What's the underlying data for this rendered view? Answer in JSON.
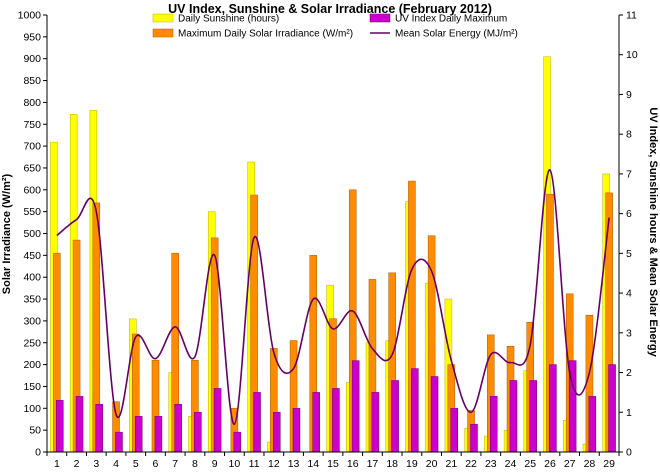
{
  "chart_data": {
    "type": "bar",
    "title": "UV Index, Sunshine & Solar Irradiance (February 2012)",
    "ylabel_left": "Solar Irradiance (W/m²)",
    "ylabel_right": "UV Index, Sunshine hours & Mean Solar Energy",
    "categories": [
      "1",
      "2",
      "3",
      "4",
      "5",
      "6",
      "7",
      "8",
      "9",
      "10",
      "11",
      "12",
      "13",
      "14",
      "15",
      "16",
      "17",
      "18",
      "19",
      "20",
      "21",
      "22",
      "23",
      "24",
      "25",
      "26",
      "27",
      "28",
      "29"
    ],
    "ylim_left": [
      0,
      1000
    ],
    "yticks_left": [
      "0",
      "50",
      "100",
      "150",
      "200",
      "250",
      "300",
      "350",
      "400",
      "450",
      "500",
      "550",
      "600",
      "650",
      "700",
      "750",
      "800",
      "850",
      "900",
      "950",
      "1000"
    ],
    "ylim_right": [
      0,
      11
    ],
    "yticks_right": [
      "0",
      "1",
      "2",
      "3",
      "4",
      "5",
      "6",
      "7",
      "8",
      "9",
      "10",
      "11"
    ],
    "grid": false,
    "legend_position": "top",
    "series": [
      {
        "name": "Daily Sunshine (hours)",
        "kind": "bar",
        "axis": "right",
        "color": "#ffff00",
        "stroke": "#bdb000",
        "values": [
          7.8,
          8.5,
          8.6,
          0.0,
          3.35,
          0.0,
          2.0,
          0.9,
          6.05,
          0.0,
          7.3,
          0.25,
          0.0,
          0.0,
          4.2,
          1.75,
          2.75,
          2.8,
          6.3,
          4.25,
          3.85,
          0.6,
          0.4,
          0.55,
          2.05,
          9.95,
          0.8,
          0.2,
          7.0
        ]
      },
      {
        "name": "Maximum Daily Solar Irradiance (W/m²)",
        "kind": "bar",
        "axis": "left",
        "color": "#ff8c00",
        "stroke": "#a85a00",
        "values": [
          455,
          485,
          570,
          115,
          270,
          210,
          455,
          210,
          490,
          100,
          588,
          237,
          255,
          450,
          305,
          600,
          395,
          410,
          620,
          495,
          200,
          95,
          268,
          242,
          297,
          590,
          362,
          313,
          593
        ]
      },
      {
        "name": "UV Index Daily Maximum",
        "kind": "bar",
        "axis": "right",
        "color": "#cc00cc",
        "stroke": "#6a006a",
        "values": [
          1.3,
          1.4,
          1.2,
          0.5,
          0.9,
          0.9,
          1.2,
          1.0,
          1.6,
          0.5,
          1.5,
          1.0,
          1.1,
          1.5,
          1.6,
          2.3,
          1.5,
          1.8,
          2.1,
          1.9,
          1.1,
          0.7,
          1.4,
          1.8,
          1.8,
          2.2,
          2.3,
          1.4,
          2.2
        ]
      },
      {
        "name": "Mean Solar Energy (MJ/m²)",
        "kind": "line",
        "axis": "right",
        "color": "#660066",
        "values": [
          5.45,
          5.85,
          6.05,
          0.95,
          2.9,
          2.35,
          3.15,
          2.4,
          4.95,
          0.7,
          5.4,
          2.5,
          2.1,
          3.85,
          3.1,
          3.55,
          2.6,
          2.45,
          4.6,
          4.55,
          2.3,
          1.0,
          2.45,
          2.25,
          2.7,
          7.1,
          2.0,
          2.0,
          5.9
        ]
      }
    ]
  }
}
